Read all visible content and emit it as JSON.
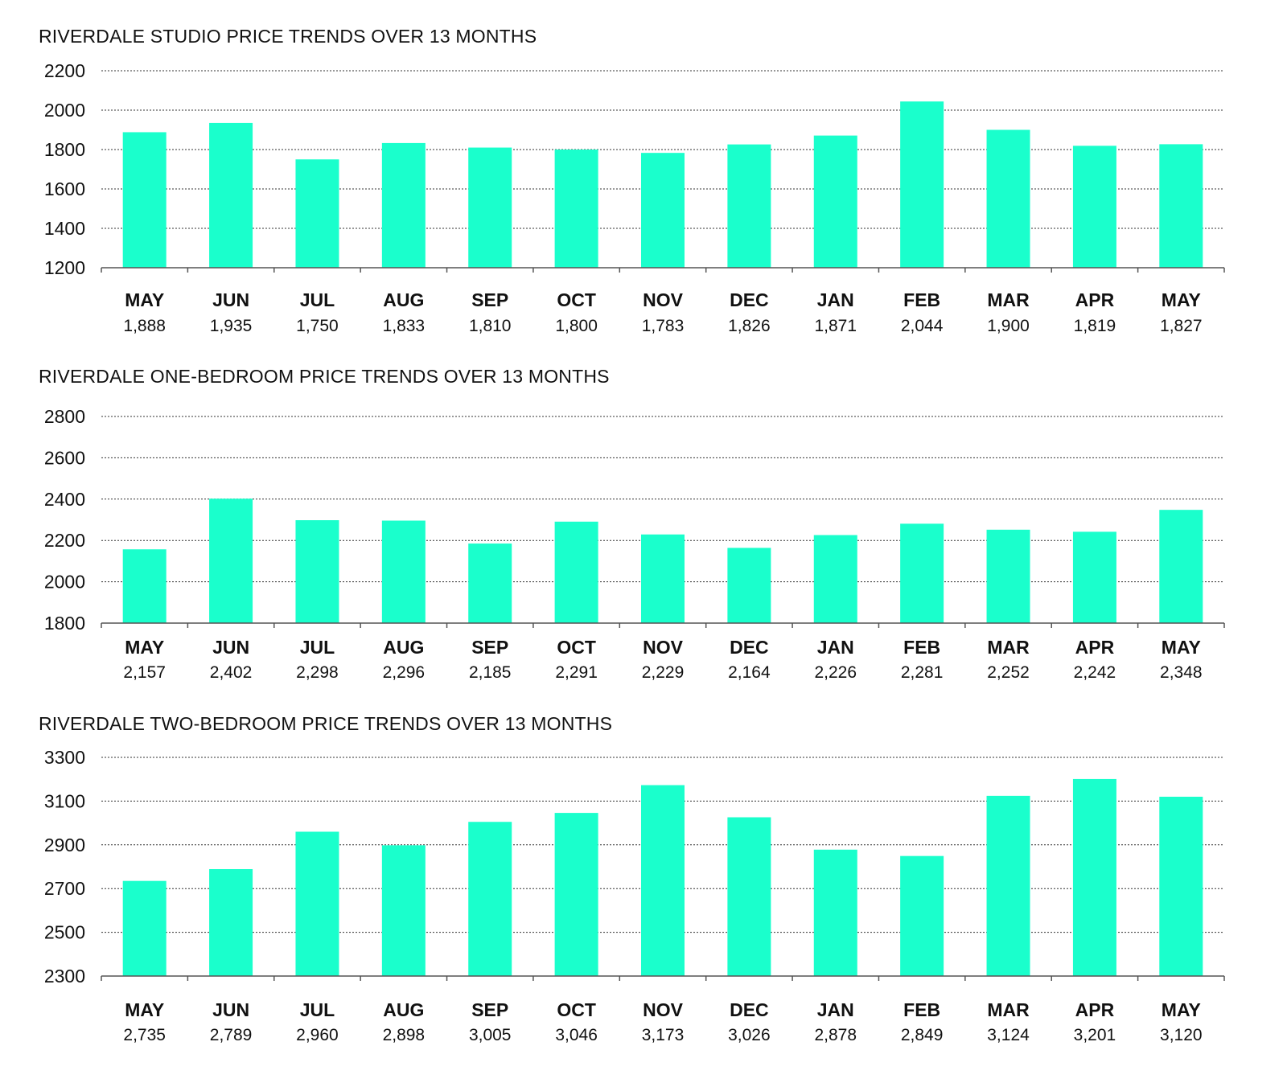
{
  "colors": {
    "bar": "#1affcc",
    "axis": "#555555",
    "grid": "#333333"
  },
  "chart_data": [
    {
      "type": "bar",
      "title": "RIVERDALE STUDIO PRICE TRENDS OVER 13 MONTHS",
      "categories": [
        "MAY",
        "JUN",
        "JUL",
        "AUG",
        "SEP",
        "OCT",
        "NOV",
        "DEC",
        "JAN",
        "FEB",
        "MAR",
        "APR",
        "MAY"
      ],
      "values": [
        1888,
        1935,
        1750,
        1833,
        1810,
        1800,
        1783,
        1826,
        1871,
        2044,
        1900,
        1819,
        1827
      ],
      "value_labels": [
        "1,888",
        "1,935",
        "1,750",
        "1,833",
        "1,810",
        "1,800",
        "1,783",
        "1,826",
        "1,871",
        "2,044",
        "1,900",
        "1,819",
        "1,827"
      ],
      "yticks": [
        "1200",
        "1400",
        "1600",
        "1800",
        "2000",
        "2200"
      ],
      "ylim": [
        1200,
        2200
      ],
      "grid": true
    },
    {
      "type": "bar",
      "title": "RIVERDALE ONE-BEDROOM PRICE TRENDS OVER 13 MONTHS",
      "categories": [
        "MAY",
        "JUN",
        "JUL",
        "AUG",
        "SEP",
        "OCT",
        "NOV",
        "DEC",
        "JAN",
        "FEB",
        "MAR",
        "APR",
        "MAY"
      ],
      "values": [
        2157,
        2402,
        2298,
        2296,
        2185,
        2291,
        2229,
        2164,
        2226,
        2281,
        2252,
        2242,
        2348
      ],
      "value_labels": [
        "2,157",
        "2,402",
        "2,298",
        "2,296",
        "2,185",
        "2,291",
        "2,229",
        "2,164",
        "2,226",
        "2,281",
        "2,252",
        "2,242",
        "2,348"
      ],
      "yticks": [
        "1800",
        "2000",
        "2200",
        "2400",
        "2600",
        "2800"
      ],
      "ylim": [
        1800,
        2800
      ],
      "grid": true
    },
    {
      "type": "bar",
      "title": "RIVERDALE TWO-BEDROOM PRICE TRENDS OVER 13 MONTHS",
      "categories": [
        "MAY",
        "JUN",
        "JUL",
        "AUG",
        "SEP",
        "OCT",
        "NOV",
        "DEC",
        "JAN",
        "FEB",
        "MAR",
        "APR",
        "MAY"
      ],
      "values": [
        2735,
        2789,
        2960,
        2898,
        3005,
        3046,
        3173,
        3026,
        2878,
        2849,
        3124,
        3201,
        3120
      ],
      "value_labels": [
        "2,735",
        "2,789",
        "2,960",
        "2,898",
        "3,005",
        "3,046",
        "3,173",
        "3,026",
        "2,878",
        "2,849",
        "3,124",
        "3,201",
        "3,120"
      ],
      "yticks": [
        "2300",
        "2500",
        "2700",
        "2900",
        "3100",
        "3300"
      ],
      "ylim": [
        2300,
        3300
      ],
      "grid": true
    }
  ]
}
